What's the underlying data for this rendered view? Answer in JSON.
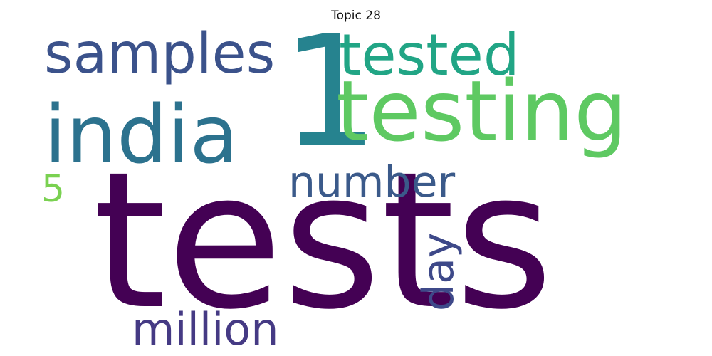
{
  "chart_data": {
    "type": "wordcloud",
    "title": "Topic 28",
    "words": [
      {
        "text": "tests",
        "weight": 1.0,
        "color": "#440154",
        "rotated": false
      },
      {
        "text": "1",
        "weight": 0.62,
        "color": "#26838f",
        "rotated": false
      },
      {
        "text": "testing",
        "weight": 0.52,
        "color": "#5ec962",
        "rotated": false
      },
      {
        "text": "india",
        "weight": 0.5,
        "color": "#2c728e",
        "rotated": false
      },
      {
        "text": "samples",
        "weight": 0.4,
        "color": "#3b528b",
        "rotated": false
      },
      {
        "text": "tested",
        "weight": 0.4,
        "color": "#21a585",
        "rotated": false
      },
      {
        "text": "number",
        "weight": 0.3,
        "color": "#3b5a8a",
        "rotated": false
      },
      {
        "text": "million",
        "weight": 0.3,
        "color": "#453a84",
        "rotated": false
      },
      {
        "text": "day",
        "weight": 0.28,
        "color": "#3e4989",
        "rotated": true
      },
      {
        "text": "5",
        "weight": 0.18,
        "color": "#7ad151",
        "rotated": false
      }
    ]
  }
}
